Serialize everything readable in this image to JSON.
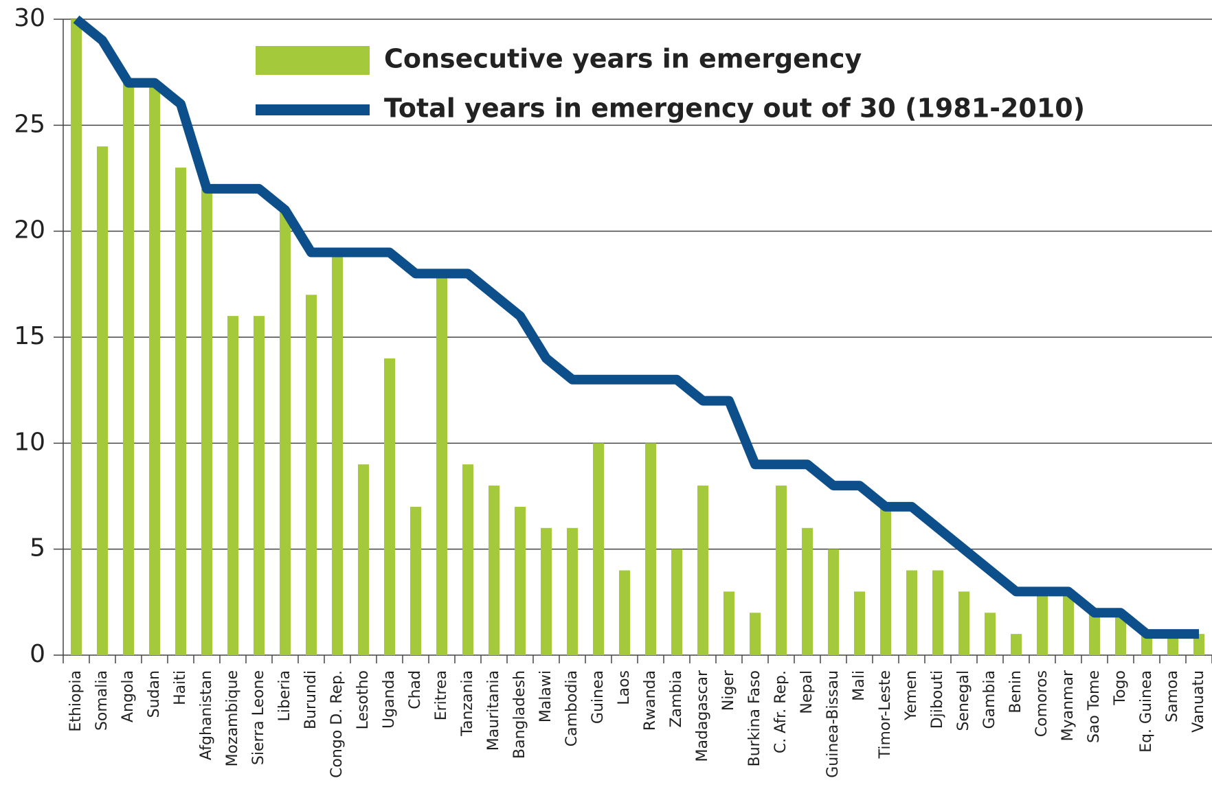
{
  "chart_data": {
    "type": "bar",
    "categories": [
      "Ethiopia",
      "Somalia",
      "Angola",
      "Sudan",
      "Haiti",
      "Afghanistan",
      "Mozambique",
      "Sierra Leone",
      "Liberia",
      "Burundi",
      "Congo D. Rep.",
      "Lesotho",
      "Uganda",
      "Chad",
      "Eritrea",
      "Tanzania",
      "Mauritania",
      "Bangladesh",
      "Malawi",
      "Cambodia",
      "Guinea",
      "Laos",
      "Rwanda",
      "Zambia",
      "Madagascar",
      "Niger",
      "Burkina Faso",
      "C. Afr. Rep.",
      "Nepal",
      "Guinea-Bissau",
      "Mali",
      "Timor-Leste",
      "Yemen",
      "Djibouti",
      "Senegal",
      "Gambia",
      "Benin",
      "Comoros",
      "Myanmar",
      "Sao Tome",
      "Togo",
      "Eq. Guinea",
      "Samoa",
      "Vanuatu"
    ],
    "series": [
      {
        "name": "Consecutive years in emergency",
        "type": "bar",
        "color": "#a4c93a",
        "values": [
          30,
          24,
          27,
          27,
          23,
          22,
          16,
          16,
          21,
          17,
          19,
          9,
          14,
          7,
          18,
          9,
          8,
          7,
          6,
          6,
          10,
          4,
          10,
          5,
          8,
          3,
          2,
          8,
          6,
          5,
          3,
          7,
          4,
          4,
          3,
          2,
          1,
          3,
          3,
          2,
          2,
          1,
          1,
          1
        ]
      },
      {
        "name": "Total years in emergency out of 30 (1981-2010)",
        "type": "line",
        "color": "#0d4f8b",
        "values": [
          30,
          29,
          27,
          27,
          26,
          22,
          22,
          22,
          21,
          19,
          19,
          19,
          19,
          18,
          18,
          18,
          17,
          16,
          14,
          13,
          13,
          13,
          13,
          13,
          12,
          12,
          9,
          9,
          9,
          8,
          8,
          7,
          7,
          6,
          5,
          4,
          3,
          3,
          3,
          2,
          2,
          1,
          1,
          1
        ]
      }
    ],
    "ylim": [
      0,
      30
    ],
    "yticks": [
      0,
      5,
      10,
      15,
      20,
      25,
      30
    ],
    "grid": true,
    "legend": "top"
  }
}
